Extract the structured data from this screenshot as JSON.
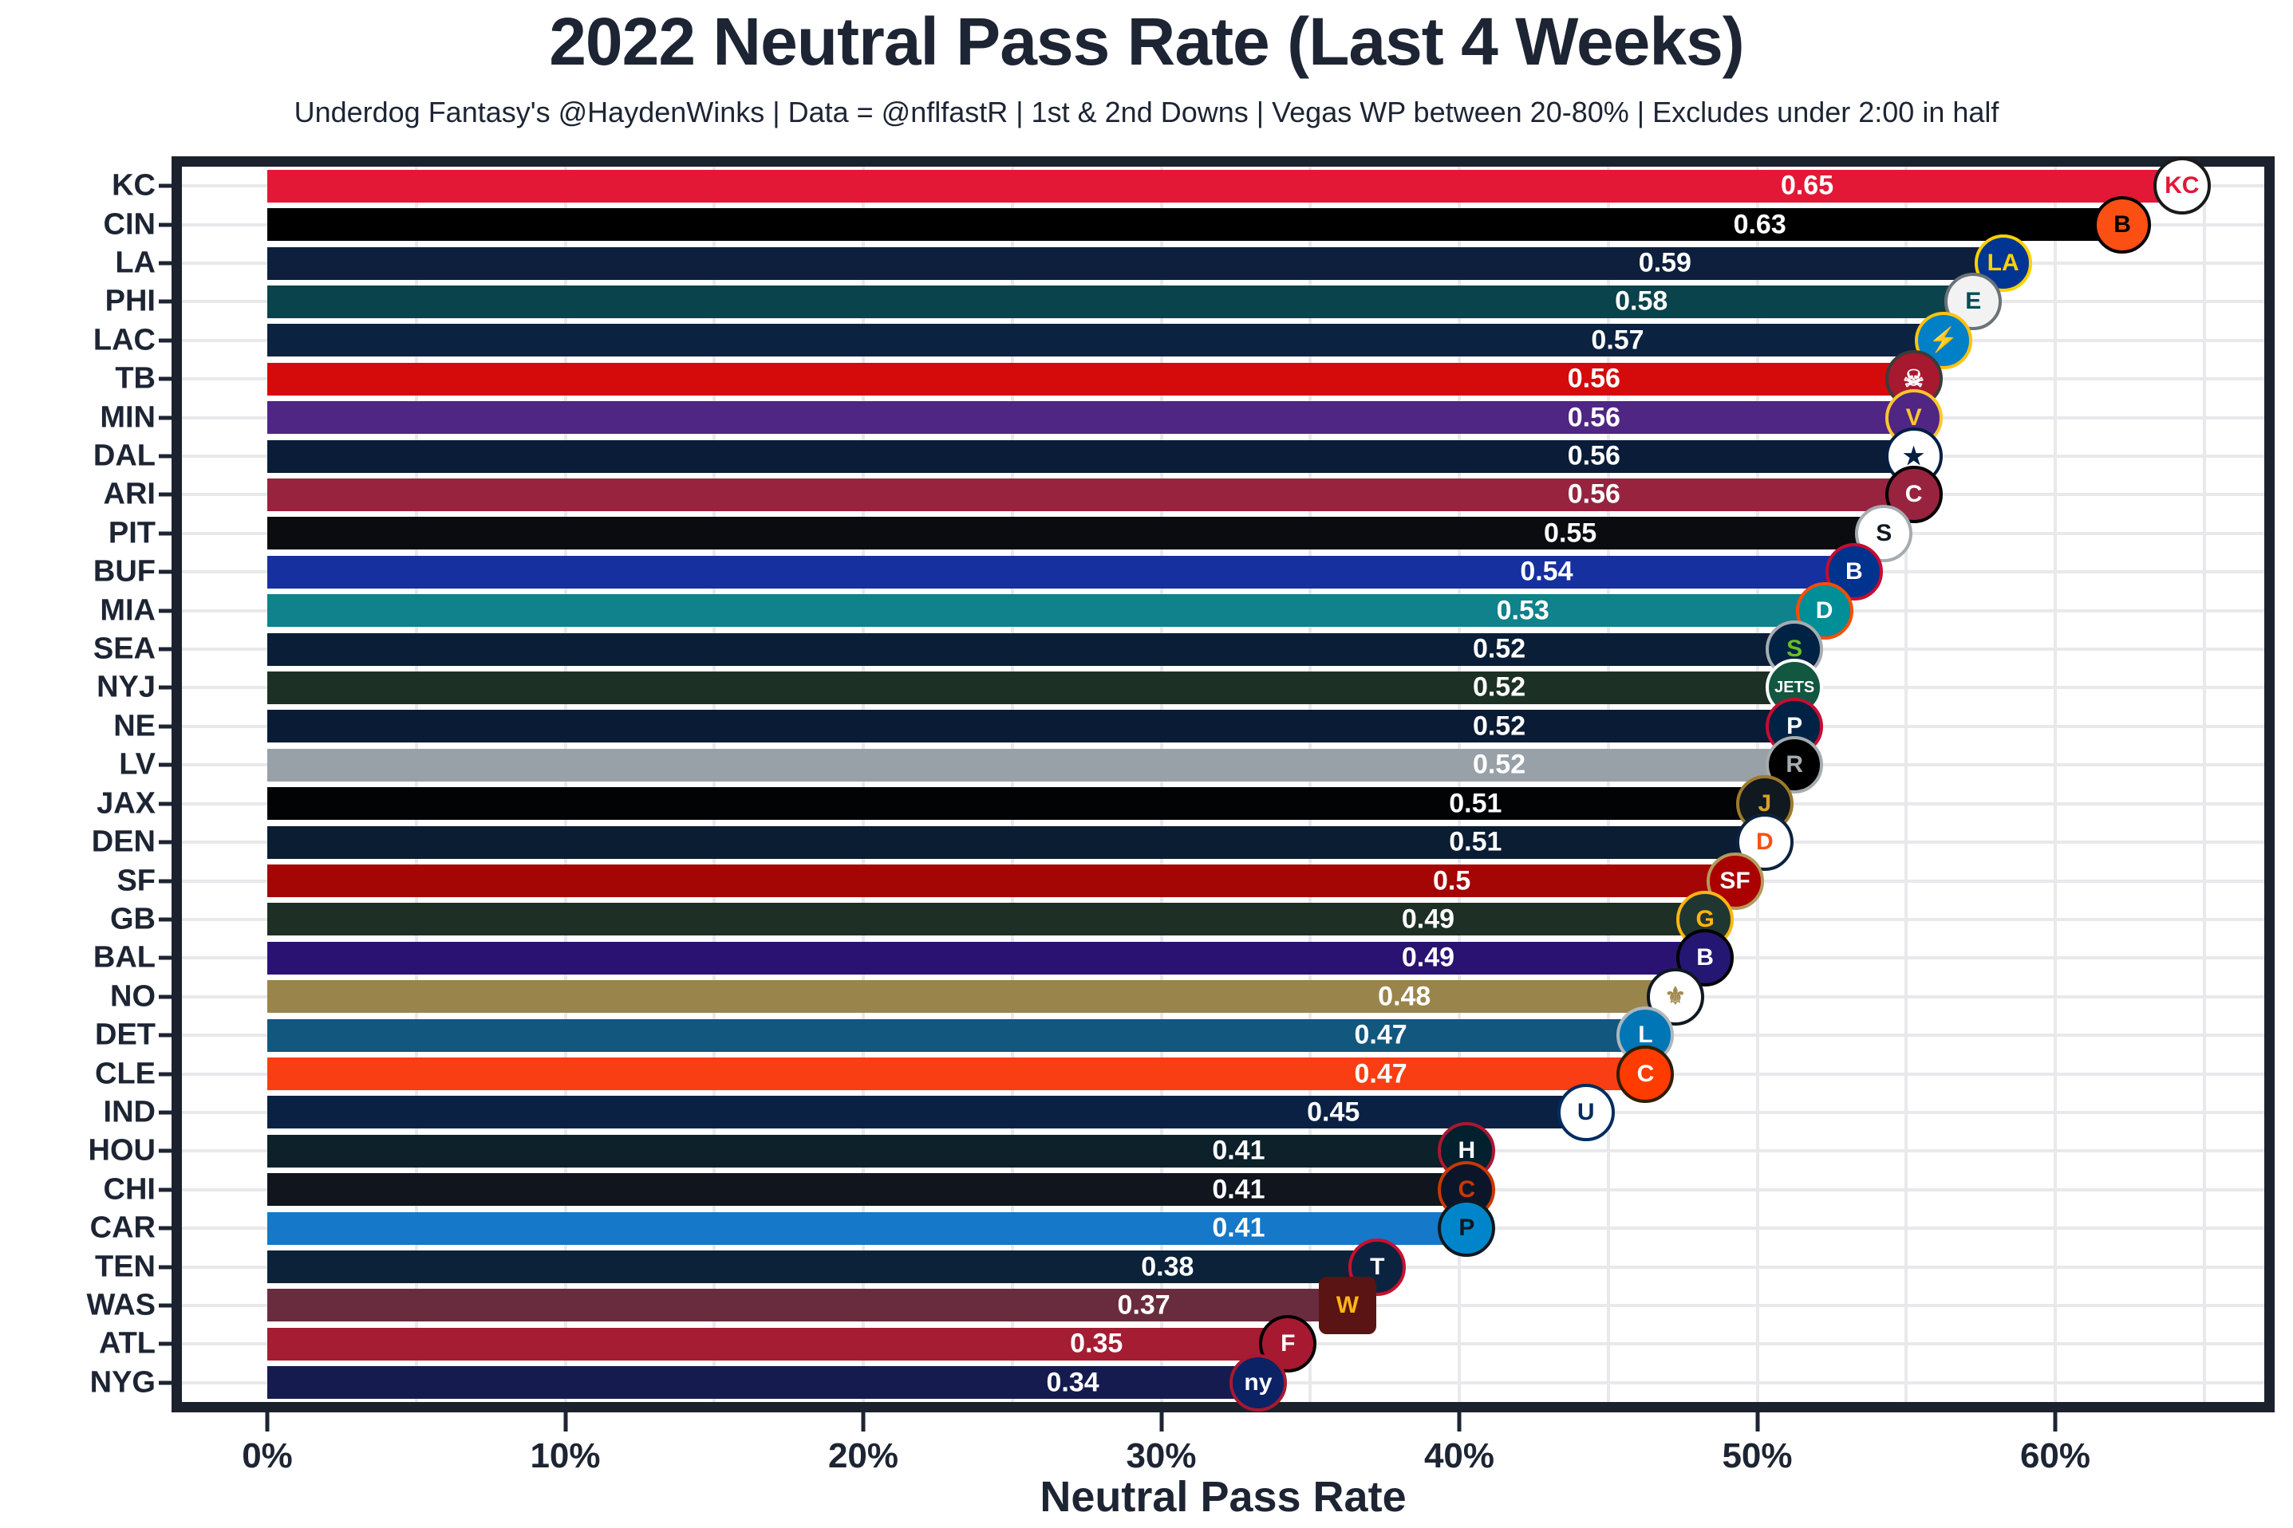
{
  "title": "2022 Neutral Pass Rate (Last 4 Weeks)",
  "subtitle": "Underdog Fantasy's @HaydenWinks | Data = @nflfastR | 1st & 2nd Downs | Vegas WP between 20-80% | Excludes under 2:00 in half",
  "colors": {
    "text": "#1D2433",
    "panel_border": "#1C212E",
    "grid": "#E9E9EC",
    "value_label": "#FFFFFF",
    "background": "#FFFFFF"
  },
  "x_axis": {
    "label": "Neutral Pass Rate",
    "tick_labels": [
      "0%",
      "10%",
      "20%",
      "30%",
      "40%",
      "50%",
      "60%"
    ],
    "tick_values_percent": [
      0,
      10,
      20,
      30,
      40,
      50,
      60
    ]
  },
  "chart_data": {
    "type": "bar",
    "orientation": "horizontal",
    "title": "2022 Neutral Pass Rate (Last 4 Weeks)",
    "xlabel": "Neutral Pass Rate",
    "xlim_percent": [
      0,
      67
    ],
    "grid": "vertical every 5%, horizontal at each row center",
    "legend": "none",
    "categories": [
      "KC",
      "CIN",
      "LA",
      "PHI",
      "LAC",
      "TB",
      "MIN",
      "DAL",
      "ARI",
      "PIT",
      "BUF",
      "MIA",
      "SEA",
      "NYJ",
      "NE",
      "LV",
      "JAX",
      "DEN",
      "SF",
      "GB",
      "BAL",
      "NO",
      "DET",
      "CLE",
      "IND",
      "HOU",
      "CHI",
      "CAR",
      "TEN",
      "WAS",
      "ATL",
      "NYG"
    ],
    "values": [
      0.65,
      0.63,
      0.59,
      0.58,
      0.57,
      0.56,
      0.56,
      0.56,
      0.56,
      0.55,
      0.54,
      0.53,
      0.52,
      0.52,
      0.52,
      0.52,
      0.51,
      0.51,
      0.5,
      0.49,
      0.49,
      0.48,
      0.47,
      0.47,
      0.45,
      0.41,
      0.41,
      0.41,
      0.38,
      0.37,
      0.35,
      0.34
    ],
    "value_labels": [
      "0.65",
      "0.63",
      "0.59",
      "0.58",
      "0.57",
      "0.56",
      "0.56",
      "0.56",
      "0.56",
      "0.55",
      "0.54",
      "0.53",
      "0.52",
      "0.52",
      "0.52",
      "0.52",
      "0.51",
      "0.51",
      "0.5",
      "0.49",
      "0.49",
      "0.48",
      "0.47",
      "0.47",
      "0.45",
      "0.41",
      "0.41",
      "0.41",
      "0.38",
      "0.37",
      "0.35",
      "0.34"
    ],
    "bar_colors": [
      "#E31837",
      "#000000",
      "#0E1F3D",
      "#0A434C",
      "#0B2240",
      "#D50A0A",
      "#4F2683",
      "#0A1C38",
      "#97233F",
      "#0A0C10",
      "#16309F",
      "#0F828B",
      "#0A1E38",
      "#1D3026",
      "#091B35",
      "#99A1A8",
      "#020304",
      "#0A1D33",
      "#A40505",
      "#1E3026",
      "#2A1273",
      "#99854B",
      "#12577E",
      "#F93E13",
      "#0A2144",
      "#0D212B",
      "#10151E",
      "#1578C8",
      "#0B2239",
      "#682C3E",
      "#A41D33",
      "#151B4E"
    ],
    "logos": [
      {
        "name": "kc-chiefs-logo-icon",
        "text": "KC",
        "bg": "#FFFFFF",
        "fg": "#E31837",
        "bd": "#1A1A1A",
        "shape": "circle"
      },
      {
        "name": "cin-bengals-logo-icon",
        "text": "B",
        "bg": "#FB4F14",
        "fg": "#000000",
        "bd": "#000000",
        "shape": "circle"
      },
      {
        "name": "la-rams-logo-icon",
        "text": "LA",
        "bg": "#003594",
        "fg": "#FFD100",
        "bd": "#FFD100",
        "shape": "circle"
      },
      {
        "name": "phi-eagles-logo-icon",
        "text": "E",
        "bg": "#F2F2F2",
        "fg": "#004C54",
        "bd": "#697378",
        "shape": "circle"
      },
      {
        "name": "lac-chargers-logo-icon",
        "text": "⚡",
        "bg": "#0080C6",
        "fg": "#FFC20E",
        "bd": "#FFC20E",
        "shape": "circle"
      },
      {
        "name": "tb-buccaneers-logo-icon",
        "text": "☠",
        "bg": "#A6192E",
        "fg": "#FFFFFF",
        "bd": "#3E3A39",
        "shape": "circle"
      },
      {
        "name": "min-vikings-logo-icon",
        "text": "V",
        "bg": "#4F2683",
        "fg": "#FFC62F",
        "bd": "#FFC62F",
        "shape": "circle"
      },
      {
        "name": "dal-cowboys-logo-icon",
        "text": "★",
        "bg": "#FFFFFF",
        "fg": "#041E42",
        "bd": "#041E42",
        "shape": "circle"
      },
      {
        "name": "ari-cardinals-logo-icon",
        "text": "C",
        "bg": "#97233F",
        "fg": "#FFFFFF",
        "bd": "#000000",
        "shape": "circle"
      },
      {
        "name": "pit-steelers-logo-icon",
        "text": "S",
        "bg": "#FFFFFF",
        "fg": "#101820",
        "bd": "#A5ACAF",
        "shape": "circle"
      },
      {
        "name": "buf-bills-logo-icon",
        "text": "B",
        "bg": "#00338D",
        "fg": "#FFFFFF",
        "bd": "#C60C30",
        "shape": "circle"
      },
      {
        "name": "mia-dolphins-logo-icon",
        "text": "D",
        "bg": "#008E97",
        "fg": "#FFFFFF",
        "bd": "#FC4C02",
        "shape": "circle"
      },
      {
        "name": "sea-seahawks-logo-icon",
        "text": "S",
        "bg": "#002244",
        "fg": "#69BE28",
        "bd": "#A5ACAF",
        "shape": "circle"
      },
      {
        "name": "nyj-jets-logo-icon",
        "text": "JETS",
        "bg": "#125740",
        "fg": "#FFFFFF",
        "bd": "#FFFFFF",
        "shape": "circle"
      },
      {
        "name": "ne-patriots-logo-icon",
        "text": "P",
        "bg": "#002244",
        "fg": "#FFFFFF",
        "bd": "#C60C30",
        "shape": "circle"
      },
      {
        "name": "lv-raiders-logo-icon",
        "text": "R",
        "bg": "#000000",
        "fg": "#A5ACAF",
        "bd": "#A5ACAF",
        "shape": "circle"
      },
      {
        "name": "jax-jaguars-logo-icon",
        "text": "J",
        "bg": "#101820",
        "fg": "#D7A22A",
        "bd": "#9F792C",
        "shape": "circle"
      },
      {
        "name": "den-broncos-logo-icon",
        "text": "D",
        "bg": "#FFFFFF",
        "fg": "#FB4F14",
        "bd": "#0C2340",
        "shape": "circle"
      },
      {
        "name": "sf-49ers-logo-icon",
        "text": "SF",
        "bg": "#AA0000",
        "fg": "#FFFFFF",
        "bd": "#B3995D",
        "shape": "circle"
      },
      {
        "name": "gb-packers-logo-icon",
        "text": "G",
        "bg": "#203731",
        "fg": "#FFB612",
        "bd": "#FFB612",
        "shape": "circle"
      },
      {
        "name": "bal-ravens-logo-icon",
        "text": "B",
        "bg": "#241773",
        "fg": "#FFFFFF",
        "bd": "#000000",
        "shape": "circle"
      },
      {
        "name": "no-saints-logo-icon",
        "text": "⚜",
        "bg": "#FFFFFF",
        "fg": "#A28A4F",
        "bd": "#101820",
        "shape": "circle"
      },
      {
        "name": "det-lions-logo-icon",
        "text": "L",
        "bg": "#0076B6",
        "fg": "#FFFFFF",
        "bd": "#B0B7BC",
        "shape": "circle"
      },
      {
        "name": "cle-browns-logo-icon",
        "text": "C",
        "bg": "#FF3C00",
        "fg": "#FFFFFF",
        "bd": "#311D00",
        "shape": "circle"
      },
      {
        "name": "ind-colts-logo-icon",
        "text": "U",
        "bg": "#FFFFFF",
        "fg": "#002C5F",
        "bd": "#002C5F",
        "shape": "circle"
      },
      {
        "name": "hou-texans-logo-icon",
        "text": "H",
        "bg": "#03202F",
        "fg": "#FFFFFF",
        "bd": "#A71930",
        "shape": "circle"
      },
      {
        "name": "chi-bears-logo-icon",
        "text": "C",
        "bg": "#0B162A",
        "fg": "#C83803",
        "bd": "#C83803",
        "shape": "circle"
      },
      {
        "name": "car-panthers-logo-icon",
        "text": "P",
        "bg": "#0085CA",
        "fg": "#101820",
        "bd": "#101820",
        "shape": "circle"
      },
      {
        "name": "ten-titans-logo-icon",
        "text": "T",
        "bg": "#0C2340",
        "fg": "#FFFFFF",
        "bd": "#C8102E",
        "shape": "circle"
      },
      {
        "name": "was-commanders-logo-icon",
        "text": "W",
        "bg": "#5A1414",
        "fg": "#FFB612",
        "bd": "#5A1414",
        "shape": "square"
      },
      {
        "name": "atl-falcons-logo-icon",
        "text": "F",
        "bg": "#A71930",
        "fg": "#FFFFFF",
        "bd": "#000000",
        "shape": "circle"
      },
      {
        "name": "nyg-giants-logo-icon",
        "text": "ny",
        "bg": "#0B2265",
        "fg": "#FFFFFF",
        "bd": "#A71930",
        "shape": "circle"
      }
    ]
  }
}
